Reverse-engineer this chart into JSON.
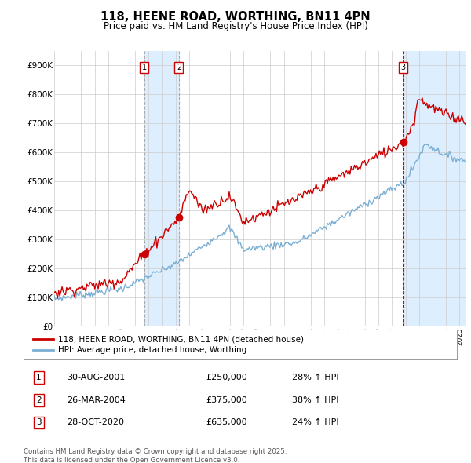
{
  "title": "118, HEENE ROAD, WORTHING, BN11 4PN",
  "subtitle": "Price paid vs. HM Land Registry's House Price Index (HPI)",
  "ylabel_vals": [
    "£0",
    "£100K",
    "£200K",
    "£300K",
    "£400K",
    "£500K",
    "£600K",
    "£700K",
    "£800K",
    "£900K"
  ],
  "ylim": [
    0,
    950000
  ],
  "xlim_start": 1995.0,
  "xlim_end": 2025.5,
  "sale1_date": 2001.66,
  "sale1_label": "1",
  "sale1_price": 250000,
  "sale1_text": "30-AUG-2001",
  "sale1_pct": "28% ↑ HPI",
  "sale2_date": 2004.23,
  "sale2_label": "2",
  "sale2_price": 375000,
  "sale2_text": "26-MAR-2004",
  "sale2_pct": "38% ↑ HPI",
  "sale3_date": 2020.83,
  "sale3_label": "3",
  "sale3_price": 635000,
  "sale3_text": "28-OCT-2020",
  "sale3_pct": "24% ↑ HPI",
  "line1_color": "#cc0000",
  "line2_color": "#7bafd4",
  "shade_color": "#ddeeff",
  "grid_color": "#cccccc",
  "background_color": "#ffffff",
  "legend1_label": "118, HEENE ROAD, WORTHING, BN11 4PN (detached house)",
  "legend2_label": "HPI: Average price, detached house, Worthing",
  "footnote": "Contains HM Land Registry data © Crown copyright and database right 2025.\nThis data is licensed under the Open Government Licence v3.0.",
  "x_ticks": [
    1995,
    1996,
    1997,
    1998,
    1999,
    2000,
    2001,
    2002,
    2003,
    2004,
    2005,
    2006,
    2007,
    2008,
    2009,
    2010,
    2011,
    2012,
    2013,
    2014,
    2015,
    2016,
    2017,
    2018,
    2019,
    2020,
    2021,
    2022,
    2023,
    2024,
    2025
  ]
}
